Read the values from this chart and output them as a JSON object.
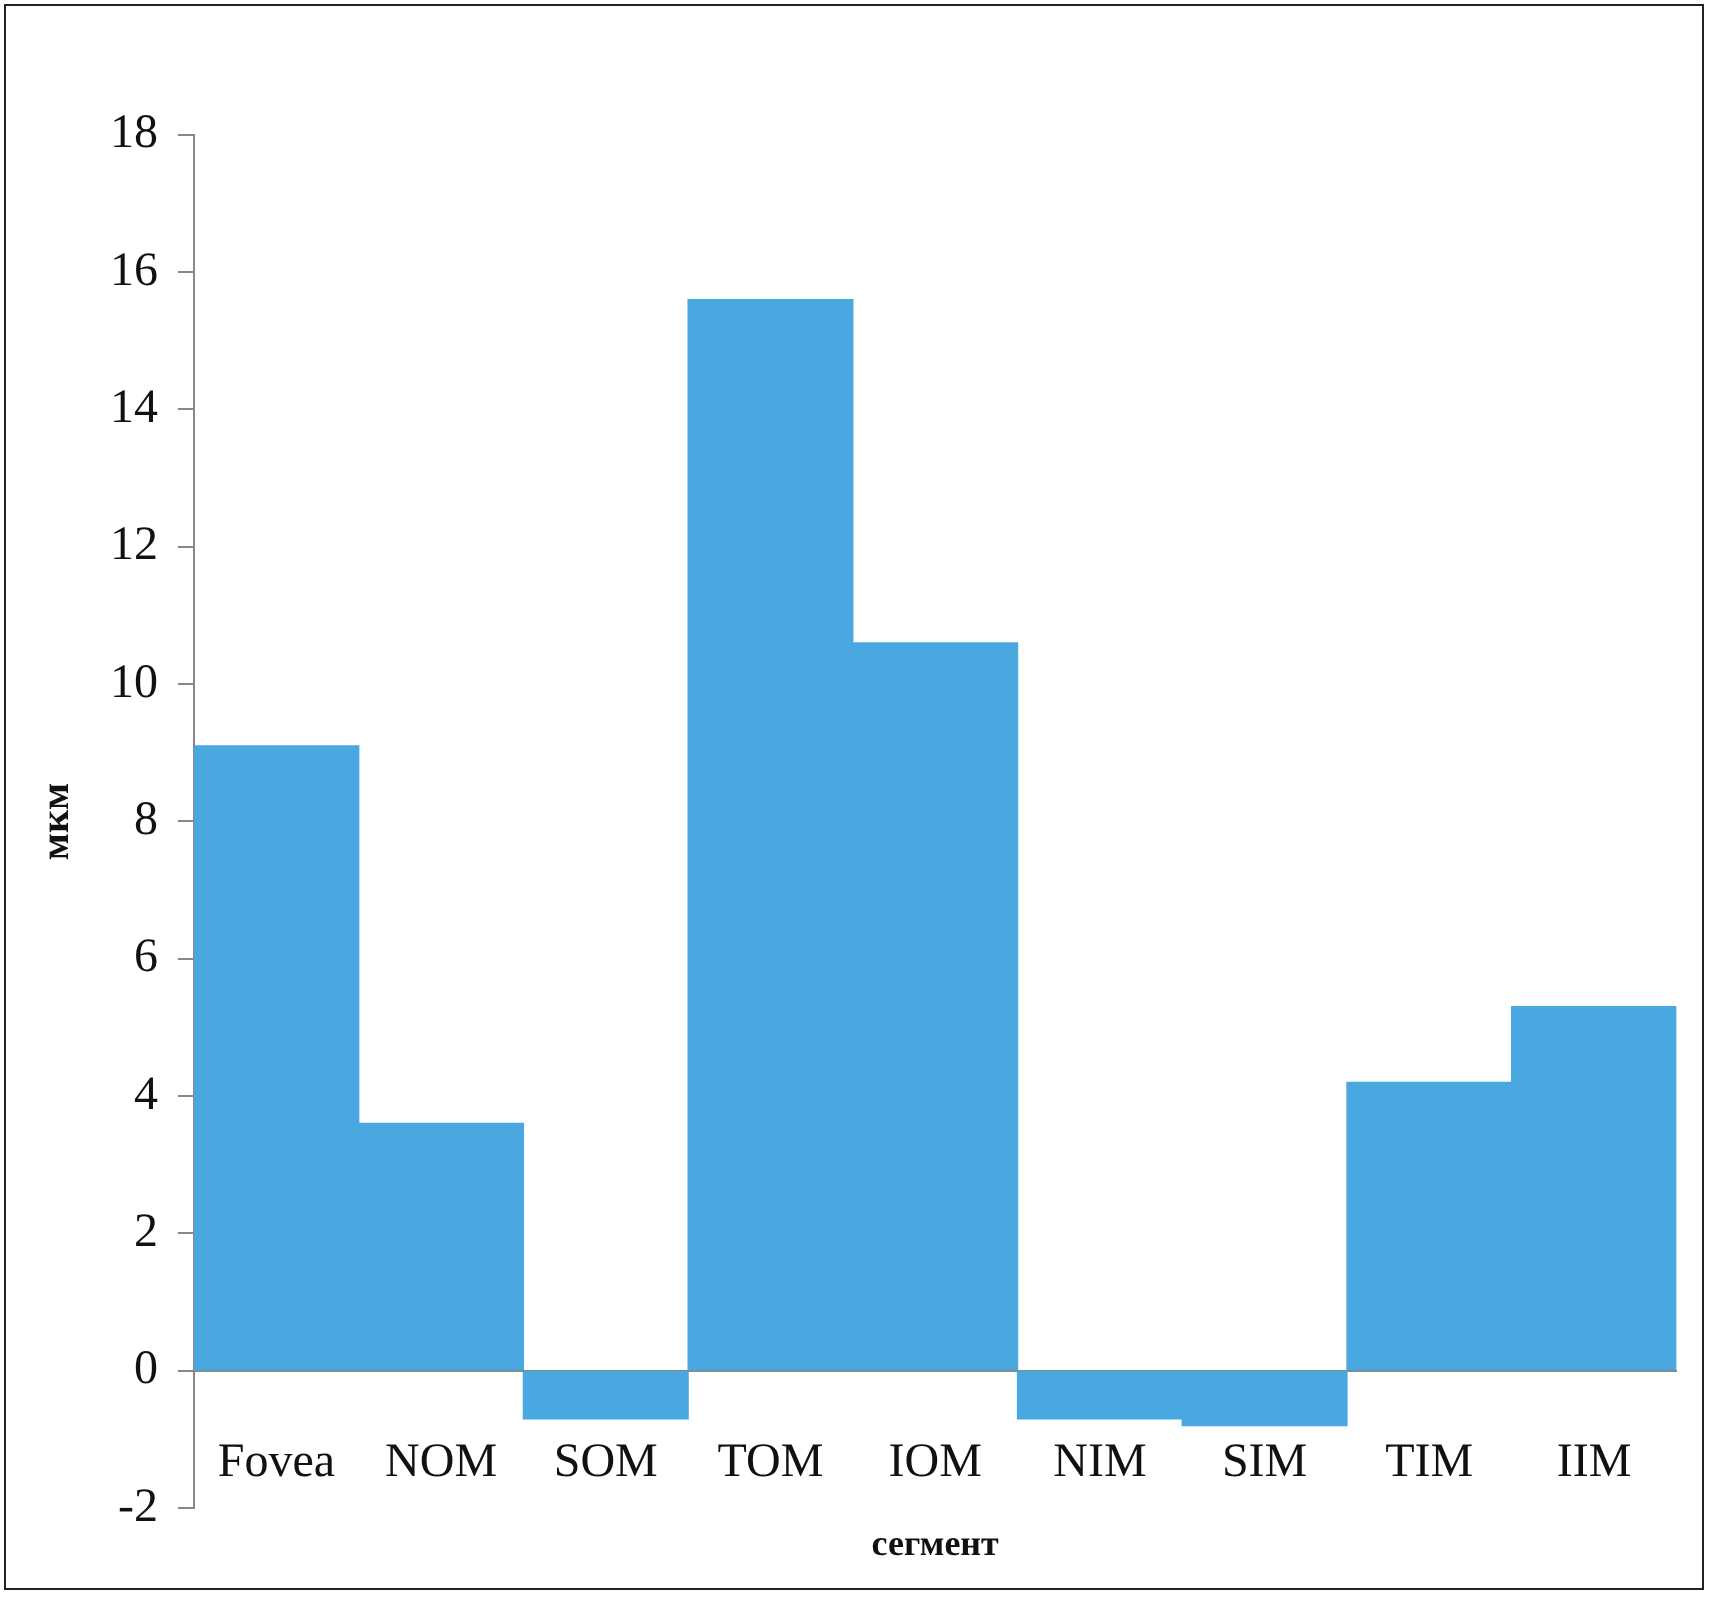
{
  "chart_data": {
    "type": "bar",
    "xlabel": "сегмент",
    "ylabel": "мкм",
    "categories": [
      "Fovea",
      "NOM",
      "SOM",
      "TOM",
      "IOM",
      "NIM",
      "SIM",
      "TIM",
      "IIM"
    ],
    "values": [
      9.1,
      3.6,
      -0.7,
      15.6,
      10.6,
      -0.7,
      -0.8,
      4.2,
      5.3
    ],
    "color": "#4aa8e0",
    "ylim": [
      -2,
      18
    ],
    "yticks": [
      -2,
      0,
      2,
      4,
      6,
      8,
      10,
      12,
      14,
      16,
      18
    ],
    "grid": false,
    "legend": false
  }
}
